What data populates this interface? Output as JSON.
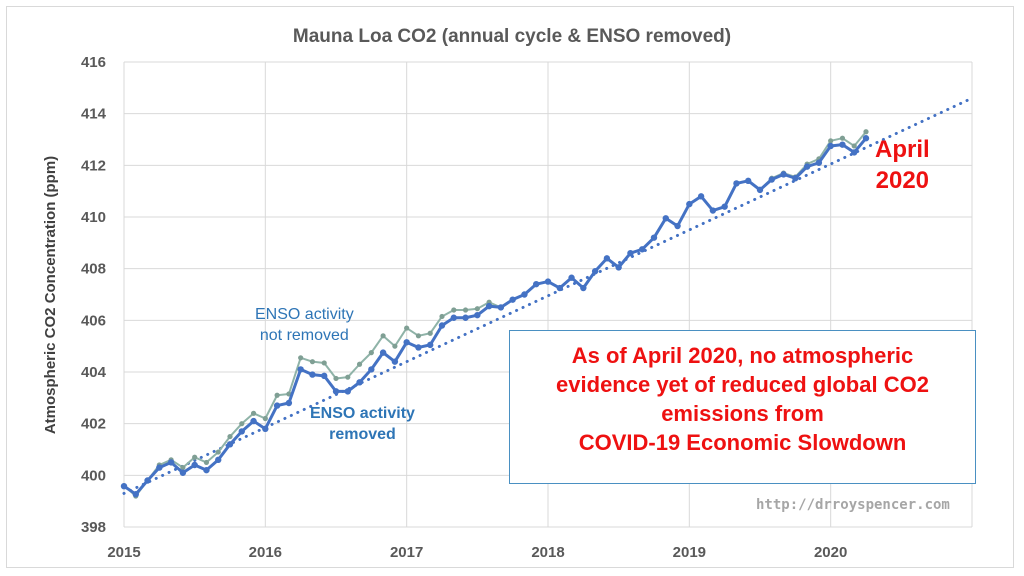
{
  "chart_data": {
    "type": "line",
    "title": "Mauna Loa CO2 (annual cycle & ENSO removed)",
    "xlabel": "",
    "ylabel": "Atmospheric CO2 Concentration (ppm)",
    "xlim": [
      2015,
      2021
    ],
    "ylim": [
      398,
      416
    ],
    "x_ticks": [
      "2015",
      "2016",
      "2017",
      "2018",
      "2019",
      "2020"
    ],
    "y_ticks": [
      "398",
      "400",
      "402",
      "404",
      "406",
      "408",
      "410",
      "412",
      "414",
      "416"
    ],
    "grid": true,
    "x_start": "2015-01",
    "x_step": "monthly",
    "series": [
      {
        "name": "ENSO activity not removed",
        "color": "#8fb3a8",
        "values": [
          399.6,
          399.2,
          399.8,
          400.4,
          400.6,
          400.3,
          400.7,
          400.5,
          400.9,
          401.5,
          402.0,
          402.4,
          402.2,
          403.1,
          403.15,
          404.55,
          404.4,
          404.35,
          403.75,
          403.8,
          404.3,
          404.75,
          405.4,
          405.0,
          405.7,
          405.4,
          405.5,
          406.15,
          406.4,
          406.4,
          406.45,
          406.7,
          406.5,
          406.8,
          407.0,
          407.4,
          407.5,
          407.25,
          407.65,
          407.25,
          407.9,
          408.4,
          408.05,
          408.6,
          408.75,
          409.2,
          409.95,
          409.65,
          410.5,
          410.8,
          410.25,
          410.4,
          411.3,
          411.4,
          411.05,
          411.5,
          411.7,
          411.55,
          412.05,
          412.25,
          412.95,
          413.05,
          412.75,
          413.3
        ]
      },
      {
        "name": "ENSO activity removed",
        "color": "#4472c4",
        "values": [
          399.58,
          399.27,
          399.8,
          400.3,
          400.5,
          400.1,
          400.4,
          400.2,
          400.6,
          401.2,
          401.7,
          402.1,
          401.8,
          402.7,
          402.8,
          404.1,
          403.9,
          403.85,
          403.25,
          403.25,
          403.6,
          404.1,
          404.75,
          404.4,
          405.15,
          404.95,
          405.05,
          405.8,
          406.1,
          406.1,
          406.2,
          406.55,
          406.5,
          406.8,
          407.0,
          407.4,
          407.5,
          407.25,
          407.65,
          407.25,
          407.9,
          408.4,
          408.05,
          408.6,
          408.75,
          409.2,
          409.95,
          409.65,
          410.5,
          410.8,
          410.25,
          410.4,
          411.3,
          411.4,
          411.05,
          411.45,
          411.65,
          411.5,
          411.95,
          412.1,
          412.75,
          412.8,
          412.5,
          413.05
        ]
      }
    ],
    "trendline": {
      "style": "dotted",
      "color": "#4472c4",
      "x": [
        2015,
        2021
      ],
      "y": [
        399.3,
        414.6
      ]
    },
    "annotations": {
      "not_removed": [
        "ENSO activity",
        "not removed"
      ],
      "removed": [
        "ENSO activity",
        "removed"
      ],
      "april": [
        "April",
        "2020"
      ],
      "note": [
        "As of April 2020, no atmospheric",
        "evidence yet of reduced global CO2",
        "emissions from",
        "COVID-19 Economic Slowdown"
      ],
      "url": "http://drroyspencer.com"
    }
  }
}
